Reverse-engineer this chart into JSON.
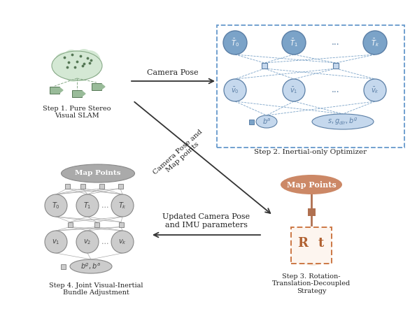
{
  "fig_width": 5.86,
  "fig_height": 4.72,
  "dpi": 100,
  "bg_color": "#ffffff",
  "step1_label": "Step 1. Pure Stereo\nVisual SLAM",
  "step2_label": "Step 2. Inertial-only Optimizer",
  "step3_label": "Step 3. Rotation-\nTranslation-Decoupled\nStrategy",
  "step4_label": "Step 4. Joint Visual-Inertial\nBundle Adjustment",
  "arrow_camera_pose_label": "Camera Pose",
  "arrow_diagonal_label": "Camera Pose and\nMap points",
  "arrow_updated_label": "Updated Camera Pose\nand IMU parameters",
  "blue_dark": "#5b7fa6",
  "blue_mid": "#7ba3c8",
  "blue_light": "#c5d8ed",
  "blue_node": "#8fb4d4",
  "dashed_box_color": "#6699cc",
  "orange_fill": "#cc8866",
  "orange_connector": "#b07050",
  "orange_dashed": "#cc7744",
  "orange_bg": "#f5e8dc",
  "orange_text": "#b06030",
  "gray_dark": "#888888",
  "gray_mid": "#aaaaaa",
  "gray_light": "#cccccc",
  "green_dark": "#557755",
  "green_mid": "#88aa88",
  "green_light": "#d4e8d4",
  "green_cam": "#99bb99",
  "text_color": "#222222",
  "line_gray": "#999999"
}
